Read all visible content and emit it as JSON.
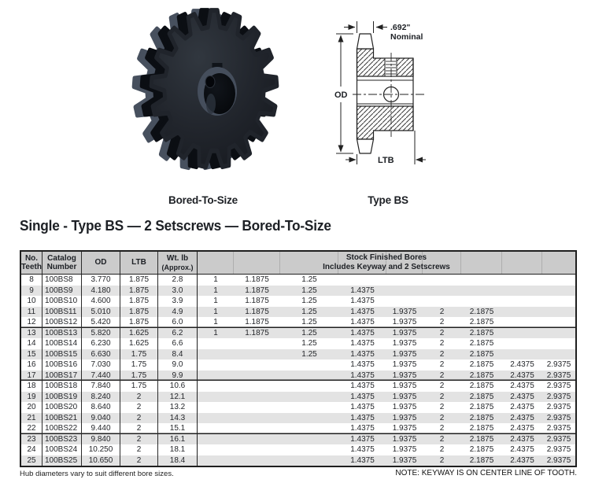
{
  "page": {
    "photo_caption": "Bored-To-Size",
    "diagram_caption": "Type BS",
    "heading": "Single - Type BS — 2 Setscrews — Bored-To-Size",
    "footnote_left": "Hub diameters vary to suit different bore sizes.",
    "footnote_right": "NOTE: KEYWAY IS ON CENTER LINE OF TOOTH."
  },
  "colors": {
    "table_header_bg": "#cbcbcb",
    "row_stripe": "#e3e3e3",
    "line": "#1f1f1f",
    "sprocket_body": "#20242b"
  },
  "diagram": {
    "nominal_value": ".692\"",
    "nominal_word": "Nominal",
    "od_label": "OD",
    "ltb_label": "LTB"
  },
  "table": {
    "headers": {
      "teeth_line1": "No.",
      "teeth_line2": "Teeth",
      "catalog_line1": "Catalog",
      "catalog_line2": "Number",
      "od": "OD",
      "ltb": "LTB",
      "wt_line1": "Wt. lb",
      "wt_line2": "(Approx.)",
      "bores_line1": "Stock Finished Bores",
      "bores_line2": "Includes Keyway and 2 Setscrews"
    },
    "rows": [
      {
        "teeth": "8",
        "catalog": "100BS8",
        "od": "3.770",
        "ltb": "1.875",
        "wt": "2.8",
        "group_end": false,
        "bores": [
          "1",
          "1.1875",
          "1.25",
          "",
          "",
          "",
          "",
          "",
          ""
        ]
      },
      {
        "teeth": "9",
        "catalog": "100BS9",
        "od": "4.180",
        "ltb": "1.875",
        "wt": "3.0",
        "group_end": false,
        "bores": [
          "1",
          "1.1875",
          "1.25",
          "1.4375",
          "",
          "",
          "",
          "",
          ""
        ]
      },
      {
        "teeth": "10",
        "catalog": "100BS10",
        "od": "4.600",
        "ltb": "1.875",
        "wt": "3.9",
        "group_end": false,
        "bores": [
          "1",
          "1.1875",
          "1.25",
          "1.4375",
          "",
          "",
          "",
          "",
          ""
        ]
      },
      {
        "teeth": "11",
        "catalog": "100BS11",
        "od": "5.010",
        "ltb": "1.875",
        "wt": "4.9",
        "group_end": false,
        "bores": [
          "1",
          "1.1875",
          "1.25",
          "1.4375",
          "1.9375",
          "2",
          "2.1875",
          "",
          ""
        ]
      },
      {
        "teeth": "12",
        "catalog": "100BS12",
        "od": "5.420",
        "ltb": "1.875",
        "wt": "6.0",
        "group_end": true,
        "bores": [
          "1",
          "1.1875",
          "1.25",
          "1.4375",
          "1.9375",
          "2",
          "2.1875",
          "",
          ""
        ]
      },
      {
        "teeth": "13",
        "catalog": "100BS13",
        "od": "5.820",
        "ltb": "1.625",
        "wt": "6.2",
        "group_end": false,
        "bores": [
          "1",
          "1.1875",
          "1.25",
          "1.4375",
          "1.9375",
          "2",
          "2.1875",
          "",
          ""
        ]
      },
      {
        "teeth": "14",
        "catalog": "100BS14",
        "od": "6.230",
        "ltb": "1.625",
        "wt": "6.6",
        "group_end": false,
        "bores": [
          "",
          "",
          "1.25",
          "1.4375",
          "1.9375",
          "2",
          "2.1875",
          "",
          ""
        ]
      },
      {
        "teeth": "15",
        "catalog": "100BS15",
        "od": "6.630",
        "ltb": "1.75",
        "wt": "8.4",
        "group_end": false,
        "bores": [
          "",
          "",
          "1.25",
          "1.4375",
          "1.9375",
          "2",
          "2.1875",
          "",
          ""
        ]
      },
      {
        "teeth": "16",
        "catalog": "100BS16",
        "od": "7.030",
        "ltb": "1.75",
        "wt": "9.0",
        "group_end": false,
        "bores": [
          "",
          "",
          "",
          "1.4375",
          "1.9375",
          "2",
          "2.1875",
          "2.4375",
          "2.9375"
        ]
      },
      {
        "teeth": "17",
        "catalog": "100BS17",
        "od": "7.440",
        "ltb": "1.75",
        "wt": "9.9",
        "group_end": true,
        "bores": [
          "",
          "",
          "",
          "1.4375",
          "1.9375",
          "2",
          "2.1875",
          "2.4375",
          "2.9375"
        ]
      },
      {
        "teeth": "18",
        "catalog": "100BS18",
        "od": "7.840",
        "ltb": "1.75",
        "wt": "10.6",
        "group_end": false,
        "bores": [
          "",
          "",
          "",
          "1.4375",
          "1.9375",
          "2",
          "2.1875",
          "2.4375",
          "2.9375"
        ]
      },
      {
        "teeth": "19",
        "catalog": "100BS19",
        "od": "8.240",
        "ltb": "2",
        "wt": "12.1",
        "group_end": false,
        "bores": [
          "",
          "",
          "",
          "1.4375",
          "1.9375",
          "2",
          "2.1875",
          "2.4375",
          "2.9375"
        ]
      },
      {
        "teeth": "20",
        "catalog": "100BS20",
        "od": "8.640",
        "ltb": "2",
        "wt": "13.2",
        "group_end": false,
        "bores": [
          "",
          "",
          "",
          "1.4375",
          "1.9375",
          "2",
          "2.1875",
          "2.4375",
          "2.9375"
        ]
      },
      {
        "teeth": "21",
        "catalog": "100BS21",
        "od": "9.040",
        "ltb": "2",
        "wt": "14.3",
        "group_end": false,
        "bores": [
          "",
          "",
          "",
          "1.4375",
          "1.9375",
          "2",
          "2.1875",
          "2.4375",
          "2.9375"
        ]
      },
      {
        "teeth": "22",
        "catalog": "100BS22",
        "od": "9.440",
        "ltb": "2",
        "wt": "15.1",
        "group_end": true,
        "bores": [
          "",
          "",
          "",
          "1.4375",
          "1.9375",
          "2",
          "2.1875",
          "2.4375",
          "2.9375"
        ]
      },
      {
        "teeth": "23",
        "catalog": "100BS23",
        "od": "9.840",
        "ltb": "2",
        "wt": "16.1",
        "group_end": false,
        "bores": [
          "",
          "",
          "",
          "1.4375",
          "1.9375",
          "2",
          "2.1875",
          "2.4375",
          "2.9375"
        ]
      },
      {
        "teeth": "24",
        "catalog": "100BS24",
        "od": "10.250",
        "ltb": "2",
        "wt": "18.1",
        "group_end": false,
        "bores": [
          "",
          "",
          "",
          "1.4375",
          "1.9375",
          "2",
          "2.1875",
          "2.4375",
          "2.9375"
        ]
      },
      {
        "teeth": "25",
        "catalog": "100BS25",
        "od": "10.650",
        "ltb": "2",
        "wt": "18.4",
        "group_end": false,
        "bores": [
          "",
          "",
          "",
          "1.4375",
          "1.9375",
          "2",
          "2.1875",
          "2.4375",
          "2.9375"
        ]
      }
    ]
  }
}
